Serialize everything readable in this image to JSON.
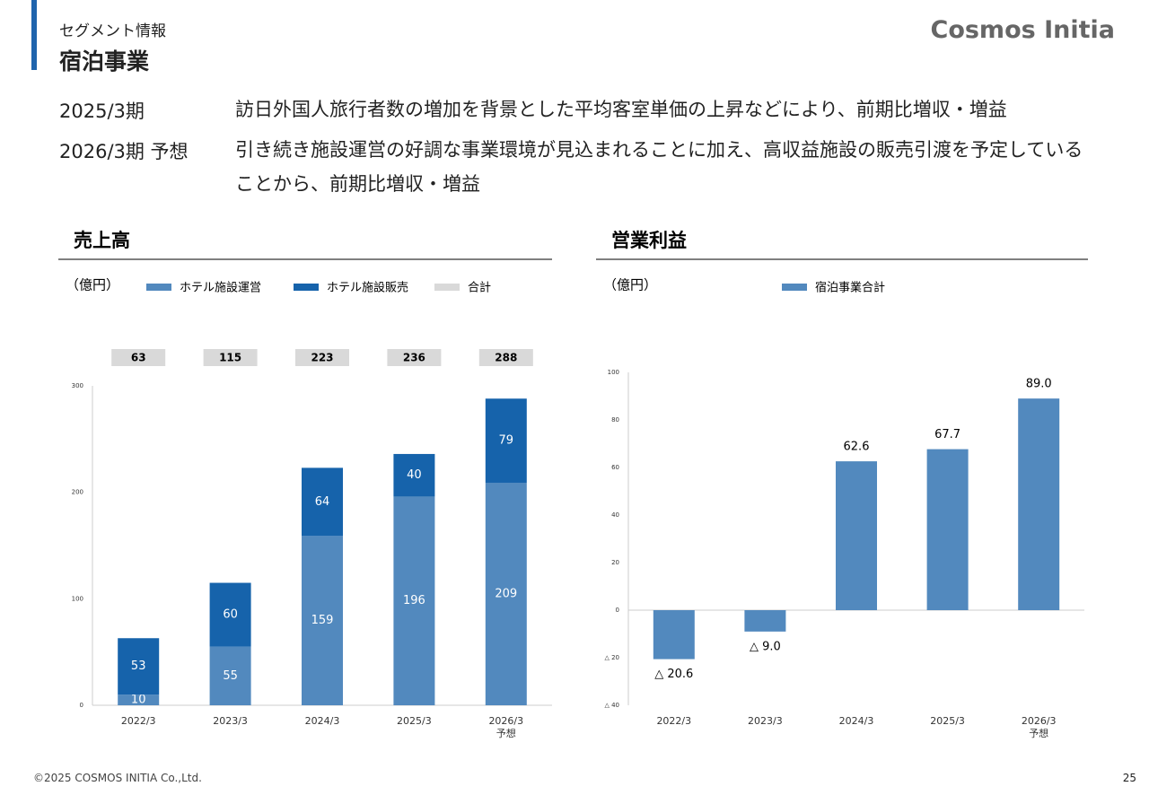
{
  "header": {
    "subtitle": "セグメント情報",
    "title": "宿泊事業",
    "logo": "Cosmos Initia"
  },
  "notes": [
    {
      "label": "2025/3期",
      "text": "訪日外国人旅行者数の増加を背景とした平均客室単価の上昇などにより、前期比増収・増益"
    },
    {
      "label": "2026/3期 予想",
      "text": "引き続き施設運営の好調な事業環境が見込まれることに加え、高収益施設の販売引渡を予定していることから、前期比増収・増益"
    }
  ],
  "chart_data": [
    {
      "type": "stacked_bar",
      "title": "売上高",
      "unit": "（億円）",
      "categories": [
        "2022/3",
        "2023/3",
        "2024/3",
        "2025/3",
        "2026/3\n予想"
      ],
      "series": [
        {
          "name": "ホテル施設運営",
          "color": "#5289be",
          "values": [
            10,
            55,
            159,
            196,
            209
          ]
        },
        {
          "name": "ホテル施設販売",
          "color": "#1663ab",
          "values": [
            53,
            60,
            64,
            40,
            79
          ]
        }
      ],
      "totals": {
        "name": "合計",
        "color": "#d9d9d9",
        "values": [
          63,
          115,
          223,
          236,
          288
        ]
      },
      "ylim": [
        0,
        300
      ],
      "yticks": [
        0,
        100,
        200,
        300
      ]
    },
    {
      "type": "bar",
      "title": "営業利益",
      "unit": "（億円）",
      "categories": [
        "2022/3",
        "2023/3",
        "2024/3",
        "2025/3",
        "2026/3\n予想"
      ],
      "series": [
        {
          "name": "宿泊事業合計",
          "color": "#5289be",
          "values": [
            -20.6,
            -9.0,
            62.6,
            67.7,
            89.0
          ],
          "value_labels": [
            "△ 20.6",
            "△ 9.0",
            "62.6",
            "67.7",
            "89.0"
          ]
        }
      ],
      "ylim": [
        -40,
        100
      ],
      "yticks": [
        {
          "value": -40,
          "label": "△ 40"
        },
        {
          "value": -20,
          "label": "△ 20"
        },
        0,
        20,
        40,
        60,
        80,
        100
      ]
    }
  ],
  "footer": {
    "copyright": "©2025 COSMOS INITIA Co.,Ltd.",
    "page": "25"
  }
}
